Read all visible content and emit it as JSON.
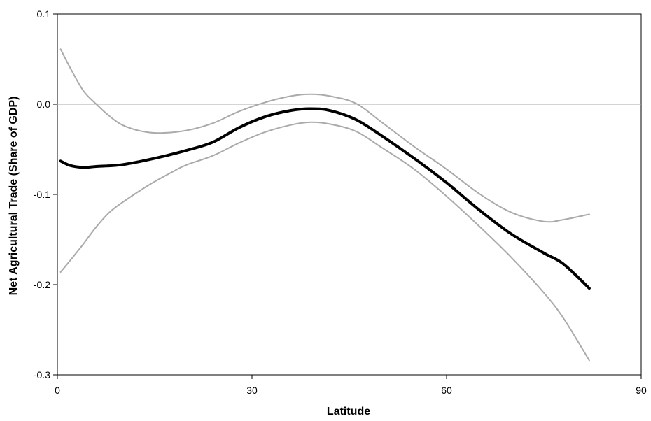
{
  "chart_data": {
    "type": "line",
    "title": "",
    "xlabel": "Latitude",
    "ylabel": "Net Agricultural Trade (Share of GDP)",
    "xlim": [
      0,
      90
    ],
    "ylim": [
      -0.3,
      0.1
    ],
    "x_ticks": [
      0,
      30,
      60,
      90
    ],
    "x_tick_labels": [
      "0",
      "30",
      "60",
      "90"
    ],
    "y_ticks": [
      0.1,
      0.0,
      -0.1,
      -0.2,
      -0.3
    ],
    "y_tick_labels": [
      "0.1",
      "0.0",
      "-0.1",
      "-0.2",
      "-0.3"
    ],
    "reference_line_y": 0.0,
    "grid": false,
    "legend": "none",
    "series": [
      {
        "role": "estimate",
        "color": "#000000",
        "x": [
          0.5,
          2,
          4,
          6,
          10,
          15,
          20,
          24,
          28,
          32,
          36,
          39,
          42,
          46,
          50,
          55,
          60,
          65,
          70,
          75,
          78,
          82
        ],
        "y": [
          -0.063,
          -0.068,
          -0.07,
          -0.069,
          -0.067,
          -0.06,
          -0.051,
          -0.042,
          -0.026,
          -0.014,
          -0.007,
          -0.005,
          -0.007,
          -0.017,
          -0.035,
          -0.06,
          -0.087,
          -0.117,
          -0.144,
          -0.165,
          -0.177,
          -0.204
        ]
      },
      {
        "role": "upper-bound",
        "color": "#aaaaaa",
        "x": [
          0.5,
          2,
          4,
          6,
          8,
          10,
          13,
          16,
          20,
          24,
          28,
          32,
          36,
          39,
          42,
          46,
          50,
          55,
          60,
          65,
          70,
          75,
          78,
          82
        ],
        "y": [
          0.061,
          0.04,
          0.015,
          0.0,
          -0.013,
          -0.023,
          -0.03,
          -0.032,
          -0.029,
          -0.021,
          -0.008,
          0.002,
          0.009,
          0.011,
          0.009,
          0.001,
          -0.02,
          -0.047,
          -0.072,
          -0.099,
          -0.12,
          -0.13,
          -0.128,
          -0.122
        ]
      },
      {
        "role": "lower-bound",
        "color": "#aaaaaa",
        "x": [
          0.5,
          2,
          4,
          6,
          8,
          10,
          14,
          18,
          20,
          24,
          28,
          32,
          36,
          39,
          42,
          46,
          50,
          55,
          60,
          65,
          70,
          75,
          78,
          82
        ],
        "y": [
          -0.186,
          -0.173,
          -0.155,
          -0.136,
          -0.12,
          -0.109,
          -0.09,
          -0.074,
          -0.067,
          -0.057,
          -0.043,
          -0.031,
          -0.023,
          -0.02,
          -0.022,
          -0.03,
          -0.048,
          -0.072,
          -0.102,
          -0.135,
          -0.17,
          -0.209,
          -0.237,
          -0.284
        ]
      }
    ]
  }
}
